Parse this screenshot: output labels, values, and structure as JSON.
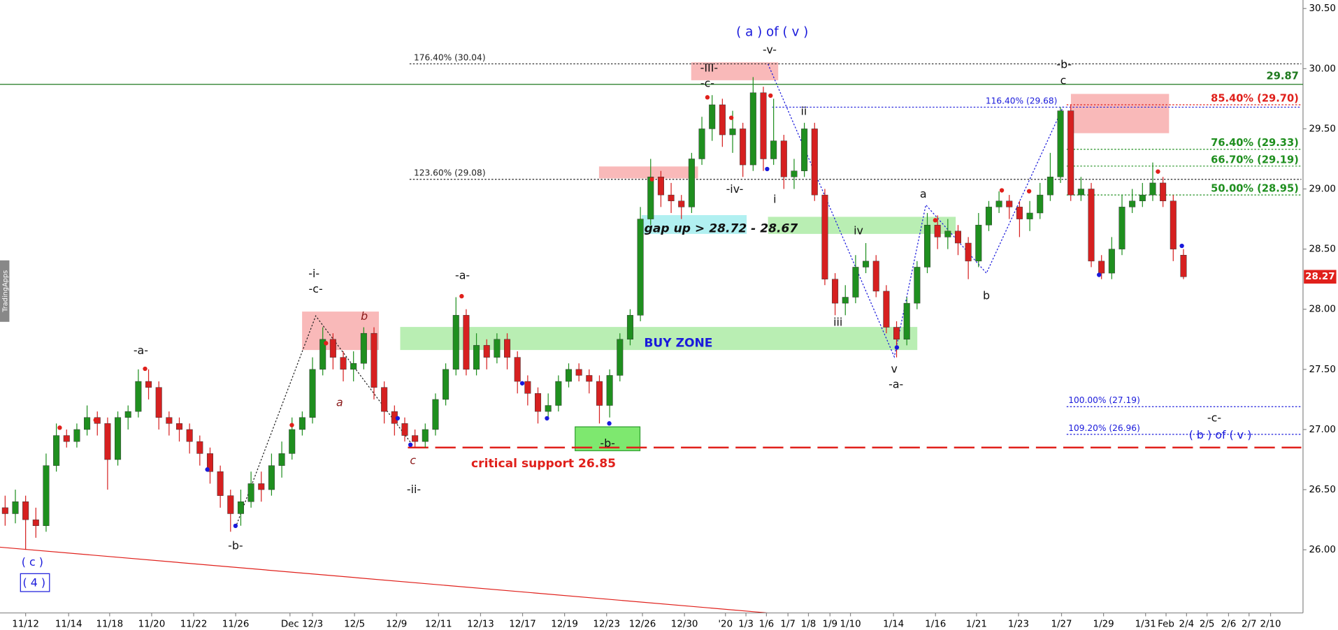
{
  "chart_data": {
    "type": "candlestick",
    "watermark": "TradingApps",
    "up_color": "#1f8f1f",
    "down_color": "#d62020",
    "xlim": [
      -0.5,
      126.5
    ],
    "xticks": [
      {
        "value": 2,
        "label": "11/12"
      },
      {
        "value": 6.2,
        "label": "11/14"
      },
      {
        "value": 10.2,
        "label": "11/18"
      },
      {
        "value": 14.3,
        "label": "11/20"
      },
      {
        "value": 18.4,
        "label": "11/22"
      },
      {
        "value": 22.5,
        "label": "11/26"
      },
      {
        "value": 27.8,
        "label": "Dec"
      },
      {
        "value": 30,
        "label": "12/3"
      },
      {
        "value": 34.1,
        "label": "12/5"
      },
      {
        "value": 38.2,
        "label": "12/9"
      },
      {
        "value": 42.3,
        "label": "12/11"
      },
      {
        "value": 46.4,
        "label": "12/13"
      },
      {
        "value": 50.5,
        "label": "12/17"
      },
      {
        "value": 54.6,
        "label": "12/19"
      },
      {
        "value": 58.7,
        "label": "12/23"
      },
      {
        "value": 62.2,
        "label": "12/26"
      },
      {
        "value": 66.3,
        "label": "12/30"
      },
      {
        "value": 70.3,
        "label": "'20"
      },
      {
        "value": 72.3,
        "label": "1/3"
      },
      {
        "value": 74.3,
        "label": "1/6"
      },
      {
        "value": 76.4,
        "label": "1/7"
      },
      {
        "value": 78.4,
        "label": "1/8"
      },
      {
        "value": 80.5,
        "label": "1/9"
      },
      {
        "value": 82.5,
        "label": "1/10"
      },
      {
        "value": 86.7,
        "label": "1/14"
      },
      {
        "value": 90.8,
        "label": "1/16"
      },
      {
        "value": 94.8,
        "label": "1/21"
      },
      {
        "value": 98.9,
        "label": "1/23"
      },
      {
        "value": 103.1,
        "label": "1/27"
      },
      {
        "value": 107.2,
        "label": "1/29"
      },
      {
        "value": 111.3,
        "label": "1/31"
      },
      {
        "value": 113.3,
        "label": "Feb"
      },
      {
        "value": 115.3,
        "label": "2/4"
      },
      {
        "value": 117.3,
        "label": "2/5"
      },
      {
        "value": 119.4,
        "label": "2/6"
      },
      {
        "value": 121.4,
        "label": "2/7"
      },
      {
        "value": 123.5,
        "label": "2/10"
      }
    ],
    "ylim": [
      25.475,
      30.571
    ],
    "yticks": [
      {
        "value": 26,
        "label": "26.00"
      },
      {
        "value": 26.5,
        "label": "26.50"
      },
      {
        "value": 27,
        "label": "27.00"
      },
      {
        "value": 27.5,
        "label": "27.50"
      },
      {
        "value": 28,
        "label": "28.00"
      },
      {
        "value": 28.5,
        "label": "28.50"
      },
      {
        "value": 29,
        "label": "29.00"
      },
      {
        "value": 29.5,
        "label": "29.50"
      },
      {
        "value": 30,
        "label": "30.00"
      },
      {
        "value": 30.5,
        "label": "30.50"
      }
    ],
    "open": [
      26.35,
      26.3,
      26.4,
      26.25,
      26.2,
      26.7,
      26.95,
      26.9,
      27.0,
      27.1,
      27.05,
      26.75,
      27.1,
      27.15,
      27.4,
      27.35,
      27.1,
      27.05,
      27.0,
      26.9,
      26.8,
      26.65,
      26.45,
      26.3,
      26.4,
      26.55,
      26.5,
      26.7,
      26.8,
      27.0,
      27.1,
      27.5,
      27.75,
      27.6,
      27.5,
      27.55,
      27.8,
      27.35,
      27.15,
      27.05,
      26.95,
      26.9,
      27.0,
      27.25,
      27.5,
      27.95,
      27.5,
      27.7,
      27.6,
      27.75,
      27.6,
      27.4,
      27.3,
      27.15,
      27.2,
      27.4,
      27.5,
      27.45,
      27.4,
      27.2,
      27.45,
      27.75,
      27.95,
      28.75,
      29.1,
      28.95,
      28.9,
      28.85,
      29.25,
      29.5,
      29.7,
      29.45,
      29.5,
      29.2,
      29.8,
      29.25,
      29.4,
      29.1,
      29.15,
      29.5,
      28.95,
      28.25,
      28.05,
      28.1,
      28.35,
      28.4,
      28.15,
      27.85,
      27.75,
      28.05,
      28.35,
      28.7,
      28.6,
      28.65,
      28.55,
      28.4,
      28.7,
      28.85,
      28.9,
      28.85,
      28.75,
      28.8,
      28.95,
      29.1,
      29.65,
      28.95,
      29.0,
      28.4,
      28.3,
      28.5,
      28.85,
      28.9,
      28.95,
      29.05,
      28.9,
      28.45
    ],
    "high": [
      26.45,
      26.5,
      26.45,
      26.35,
      26.8,
      27.05,
      27.0,
      27.05,
      27.2,
      27.15,
      27.1,
      27.15,
      27.2,
      27.5,
      27.5,
      27.4,
      27.15,
      27.1,
      27.05,
      26.95,
      26.85,
      26.7,
      26.5,
      26.5,
      26.65,
      26.65,
      26.8,
      26.9,
      27.1,
      27.15,
      27.6,
      27.85,
      27.8,
      27.65,
      27.65,
      27.85,
      27.85,
      27.4,
      27.2,
      27.1,
      27.0,
      27.05,
      27.3,
      27.55,
      28.1,
      28.0,
      27.8,
      27.75,
      27.8,
      27.8,
      27.65,
      27.45,
      27.35,
      27.3,
      27.45,
      27.55,
      27.55,
      27.5,
      27.45,
      27.5,
      27.8,
      28.0,
      28.85,
      29.25,
      29.15,
      29.05,
      28.95,
      29.3,
      29.6,
      29.78,
      29.75,
      29.65,
      29.55,
      29.93,
      29.85,
      29.75,
      29.45,
      29.25,
      29.55,
      29.55,
      29.0,
      28.3,
      28.2,
      28.45,
      28.55,
      28.45,
      28.2,
      27.9,
      28.1,
      28.4,
      28.8,
      28.78,
      28.75,
      28.7,
      28.6,
      28.8,
      28.9,
      28.98,
      28.95,
      28.9,
      28.9,
      29.05,
      29.3,
      29.68,
      29.7,
      29.1,
      29.05,
      28.45,
      28.6,
      28.95,
      29.0,
      29.05,
      29.22,
      29.1,
      28.95,
      28.5
    ],
    "low": [
      26.2,
      26.22,
      26.0,
      26.1,
      26.15,
      26.65,
      26.85,
      26.85,
      26.95,
      26.95,
      26.5,
      26.7,
      27.0,
      27.1,
      27.25,
      27.0,
      26.95,
      26.9,
      26.8,
      26.7,
      26.55,
      26.35,
      26.15,
      26.2,
      26.35,
      26.4,
      26.45,
      26.6,
      26.75,
      26.95,
      27.05,
      27.45,
      27.5,
      27.4,
      27.4,
      27.5,
      27.25,
      27.05,
      26.95,
      26.9,
      26.85,
      26.85,
      26.95,
      27.2,
      27.45,
      27.45,
      27.45,
      27.5,
      27.55,
      27.5,
      27.3,
      27.2,
      27.05,
      27.1,
      27.15,
      27.35,
      27.4,
      27.3,
      27.05,
      27.1,
      27.4,
      27.7,
      27.9,
      28.7,
      28.85,
      28.8,
      28.75,
      28.8,
      29.2,
      29.4,
      29.35,
      29.3,
      29.1,
      29.15,
      29.15,
      29.2,
      29.0,
      29.0,
      29.1,
      28.9,
      28.2,
      27.95,
      27.95,
      28.05,
      28.3,
      28.1,
      27.8,
      27.6,
      27.7,
      28.0,
      28.3,
      28.5,
      28.5,
      28.45,
      28.25,
      28.35,
      28.65,
      28.8,
      28.75,
      28.6,
      28.65,
      28.75,
      28.9,
      29.05,
      28.9,
      28.9,
      28.35,
      28.25,
      28.25,
      28.45,
      28.8,
      28.85,
      28.9,
      28.85,
      28.4,
      28.25
    ],
    "close": [
      26.3,
      26.4,
      26.25,
      26.2,
      26.7,
      26.95,
      26.9,
      27.0,
      27.1,
      27.05,
      26.75,
      27.1,
      27.15,
      27.4,
      27.35,
      27.1,
      27.05,
      27.0,
      26.9,
      26.8,
      26.65,
      26.45,
      26.3,
      26.4,
      26.55,
      26.5,
      26.7,
      26.8,
      27.0,
      27.1,
      27.5,
      27.75,
      27.6,
      27.5,
      27.55,
      27.8,
      27.35,
      27.15,
      27.05,
      26.95,
      26.9,
      27.0,
      27.25,
      27.5,
      27.95,
      27.5,
      27.7,
      27.6,
      27.75,
      27.6,
      27.4,
      27.3,
      27.15,
      27.2,
      27.4,
      27.5,
      27.45,
      27.4,
      27.2,
      27.45,
      27.75,
      27.95,
      28.75,
      29.1,
      28.95,
      28.9,
      28.85,
      29.25,
      29.5,
      29.7,
      29.45,
      29.5,
      29.2,
      29.8,
      29.25,
      29.4,
      29.1,
      29.15,
      29.5,
      28.95,
      28.25,
      28.05,
      28.1,
      28.35,
      28.4,
      28.15,
      27.85,
      27.75,
      28.05,
      28.35,
      28.7,
      28.6,
      28.65,
      28.55,
      28.4,
      28.7,
      28.85,
      28.9,
      28.85,
      28.75,
      28.8,
      28.95,
      29.1,
      29.65,
      28.95,
      29.0,
      28.4,
      28.3,
      28.5,
      28.85,
      28.9,
      28.95,
      29.05,
      28.9,
      28.5,
      28.27
    ],
    "levels": [
      {
        "label": "176.40% (30.04)",
        "value": 30.04,
        "color": "#222222"
      },
      {
        "label": "123.60% (29.08)",
        "value": 29.08,
        "color": "#222222"
      },
      {
        "label": "116.40% (29.68)",
        "value": 29.68,
        "color": "#1a1adb"
      },
      {
        "label": "85.40% (29.70)",
        "value": 29.7,
        "color": "#e0201b"
      },
      {
        "label": "76.40% (29.33)",
        "value": 29.33,
        "color": "#1f8f1f"
      },
      {
        "label": "66.70% (29.19)",
        "value": 29.19,
        "color": "#1f8f1f"
      },
      {
        "label": "50.00% (28.95)",
        "value": 28.95,
        "color": "#1f8f1f"
      },
      {
        "label": "100.00% (27.19)",
        "value": 27.19,
        "color": "#1a1adb"
      },
      {
        "label": "109.20% (26.96)",
        "value": 26.96,
        "color": "#1a1adb"
      }
    ],
    "horizontal_line": {
      "value": 29.87,
      "color": "#1f7a1f"
    },
    "support": {
      "label": "critical support 26.85",
      "value": 26.85,
      "color": "#e0201b"
    },
    "annotations": [
      "-a-",
      "-i-",
      "-c-",
      "b",
      "a",
      "c",
      "-ii-",
      "-b-",
      "( c )",
      "( 4 )",
      "-a-",
      "-b-",
      "BUY ZONE",
      "gap up > 28.72 - 28.67",
      "( a ) of ( v )",
      "-v-",
      "-III-",
      "-c-",
      "ii",
      "-iv-",
      "i",
      "iv",
      "iii",
      "v",
      "-a-",
      "a",
      "b",
      "-b-",
      "c",
      "-c-",
      "( b ) of ( v )"
    ]
  }
}
